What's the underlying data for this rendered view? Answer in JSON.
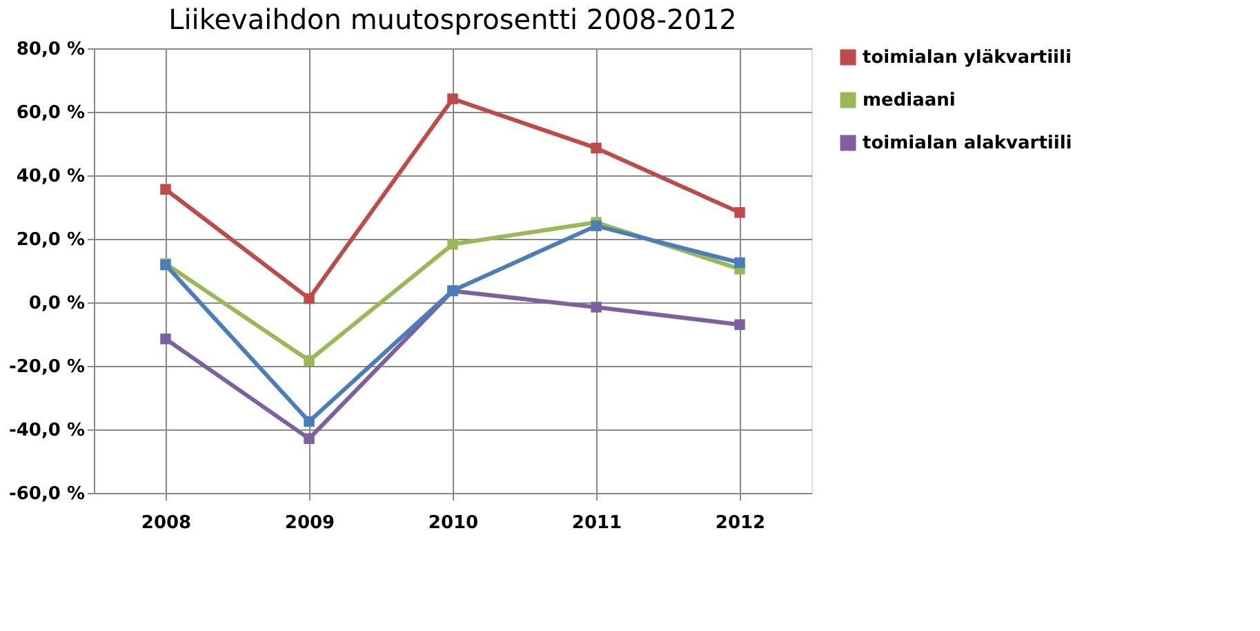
{
  "chart_data": {
    "type": "line",
    "title": "Liikevaihdon muutosprosentti  2008-2012",
    "categories": [
      "2008",
      "2009",
      "2010",
      "2011",
      "2012"
    ],
    "series": [
      {
        "color": "#4a7ebb",
        "values": [
          11.8,
          -37.5,
          3.7,
          24.1,
          12.5
        ]
      },
      {
        "name": "toimialan yläkvartiili",
        "color": "#be4b48",
        "values": [
          35.6,
          1.2,
          64.1,
          48.6,
          28.3
        ]
      },
      {
        "name": "mediaani",
        "color": "#98b954",
        "values": [
          12.2,
          -18.3,
          18.3,
          25.2,
          10.5
        ]
      },
      {
        "name": "toimialan alakvartiili",
        "color": "#7d60a0",
        "values": [
          -11.5,
          -42.9,
          3.6,
          -1.5,
          -7.0
        ]
      }
    ],
    "ylim": [
      -60,
      80
    ],
    "yticks": [
      {
        "value": -60,
        "label": "-60,0 %"
      },
      {
        "value": -40,
        "label": "-40,0 %"
      },
      {
        "value": -20,
        "label": "-20,0 %"
      },
      {
        "value": 0,
        "label": "0,0 %"
      },
      {
        "value": 20,
        "label": "20,0 %"
      },
      {
        "value": 40,
        "label": "40,0 %"
      },
      {
        "value": 60,
        "label": "60,0 %"
      },
      {
        "value": 80,
        "label": "80,0 %"
      }
    ],
    "grid": true,
    "legend": "right",
    "marker": "square",
    "line_style": "solid"
  }
}
